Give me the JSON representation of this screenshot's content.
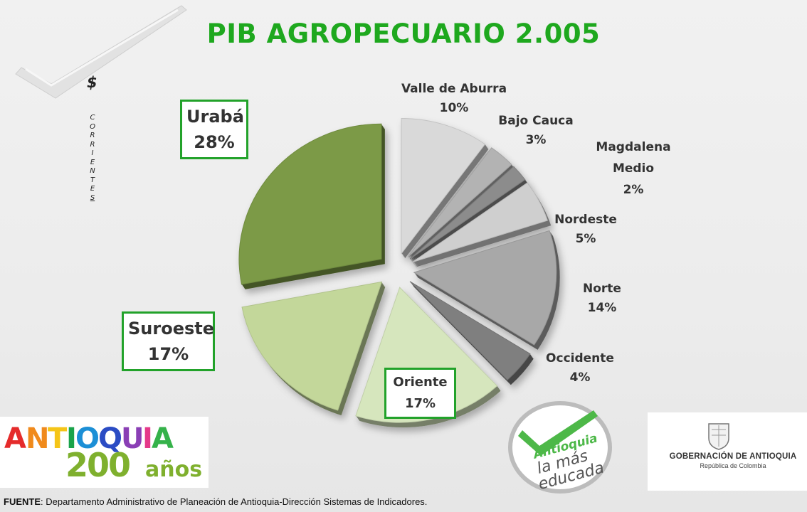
{
  "title": "PIB AGROPECUARIO 2.005",
  "currency": {
    "symbol": "$",
    "vertical_letters": [
      "C",
      "O",
      "R",
      "R",
      "I",
      "E",
      "N",
      "T",
      "E",
      "S"
    ]
  },
  "chart_data": {
    "type": "pie",
    "title": "PIB AGROPECUARIO 2.005",
    "unit": "%",
    "slices": [
      {
        "label": "Valle de Aburra",
        "value": 10,
        "value_label": "10%",
        "color": "#d9d9d9"
      },
      {
        "label": "Bajo Cauca",
        "value": 3,
        "value_label": "3%",
        "color": "#b3b3b3"
      },
      {
        "label": "Magdalena Medio",
        "value": 2,
        "value_label": "2%",
        "color": "#8c8c8c"
      },
      {
        "label": "Nordeste",
        "value": 5,
        "value_label": "5%",
        "color": "#cfcfcf"
      },
      {
        "label": "Norte",
        "value": 14,
        "value_label": "14%",
        "color": "#a8a8a8"
      },
      {
        "label": "Occidente",
        "value": 4,
        "value_label": "4%",
        "color": "#7f7f7f"
      },
      {
        "label": "Oriente",
        "value": 17,
        "value_label": "17%",
        "color": "#d6e6bd"
      },
      {
        "label": "Suroeste",
        "value": 17,
        "value_label": "17%",
        "color": "#c3d79a"
      },
      {
        "label": "Urabá",
        "value": 28,
        "value_label": "28%",
        "color": "#7b9a46"
      }
    ]
  },
  "labels": {
    "valle": {
      "name": "Valle de Aburra",
      "pct": "10%"
    },
    "bajo": {
      "name": "Bajo Cauca",
      "pct": "3%"
    },
    "magdalena": {
      "name1": "Magdalena",
      "name2": "Medio",
      "pct": "2%"
    },
    "nordeste": {
      "name": "Nordeste",
      "pct": "5%"
    },
    "norte": {
      "name": "Norte",
      "pct": "14%"
    },
    "occidente": {
      "name": "Occidente",
      "pct": "4%"
    },
    "oriente": {
      "name": "Oriente",
      "pct": "17%"
    },
    "suroeste": {
      "name": "Suroeste",
      "pct": "17%"
    },
    "uraba": {
      "name": "Urabá",
      "pct": "28%"
    }
  },
  "logos": {
    "antioquia": {
      "word": "ANTIOQUIA",
      "number": "200",
      "anos": "años",
      "letter_colors": [
        "#e52b2b",
        "#f08a1c",
        "#f5c518",
        "#1aa34a",
        "#1c8fd6",
        "#2b4cc4",
        "#8a3fb5",
        "#e5398a",
        "#35b24a"
      ]
    },
    "educada": {
      "line1": "Antioquia",
      "line2": "la más",
      "line3": "educada"
    },
    "gobernacion": {
      "name": "GOBERNACIÓN DE ANTIOQUIA",
      "sub": "República de Colombia"
    }
  },
  "source": {
    "prefix": "FUENTE",
    "text": ": Departamento Administrativo de Planeación de Antioquia-Dirección Sistemas de Indicadores."
  }
}
